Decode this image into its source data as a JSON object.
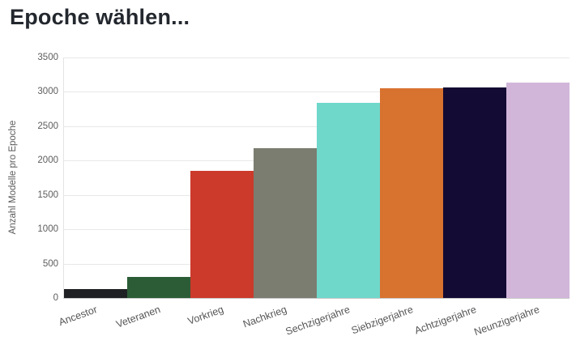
{
  "page": {
    "title": "Epoche wählen..."
  },
  "chart_data": {
    "type": "bar",
    "title": "Epoche wählen...",
    "xlabel": "",
    "ylabel": "Anzahl Modelle pro Epoche",
    "categories": [
      "Ancestor",
      "Veteranen",
      "Vorkrieg",
      "Nachkrieg",
      "Sechzigerjahre",
      "Siebzigerjahre",
      "Achtzigerjahre",
      "Neunzigerjahre"
    ],
    "values": [
      130,
      305,
      1855,
      2180,
      2840,
      3050,
      3070,
      3130
    ],
    "bar_colors": [
      "#1f2023",
      "#2b5c36",
      "#cc3a2b",
      "#7b7d70",
      "#6fd8cb",
      "#d8722f",
      "#130b34",
      "#d1b6d9"
    ],
    "ylim": [
      0,
      3500
    ],
    "ytick_step": 500,
    "yticks": [
      0,
      500,
      1000,
      1500,
      2000,
      2500,
      3000,
      3500
    ],
    "grid": "horizontal",
    "legend": "none",
    "bar_gap": 0
  },
  "colors": {
    "title_text": "#23272e",
    "tick_text": "#5d5d5d",
    "axis_line": "#c9c9c9",
    "grid_line": "#e8e8e8",
    "background": "#ffffff"
  }
}
